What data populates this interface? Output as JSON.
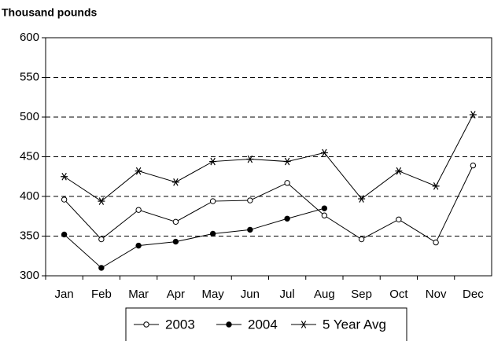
{
  "chart_data": {
    "type": "line",
    "y_label": "Thousand pounds",
    "categories": [
      "Jan",
      "Feb",
      "Mar",
      "Apr",
      "May",
      "Jun",
      "Jul",
      "Aug",
      "Sep",
      "Oct",
      "Nov",
      "Dec"
    ],
    "series": [
      {
        "name": "2003",
        "color": "#000000",
        "marker": "open-circle",
        "values": [
          396,
          346,
          383,
          368,
          394,
          395,
          417,
          376,
          346,
          371,
          342,
          439
        ]
      },
      {
        "name": "2004",
        "color": "#000000",
        "marker": "filled-circle",
        "values": [
          352,
          310,
          338,
          343,
          353,
          358,
          372,
          385,
          null,
          null,
          null,
          null
        ]
      },
      {
        "name": "5 Year Avg",
        "color": "#000000",
        "marker": "asterisk",
        "values": [
          425,
          394,
          432,
          418,
          444,
          447,
          444,
          455,
          397,
          432,
          413,
          503
        ]
      }
    ],
    "ylim": [
      300,
      600
    ],
    "yticks": [
      300,
      350,
      400,
      450,
      500,
      550,
      600
    ],
    "grid": true,
    "legend": "bottom"
  }
}
